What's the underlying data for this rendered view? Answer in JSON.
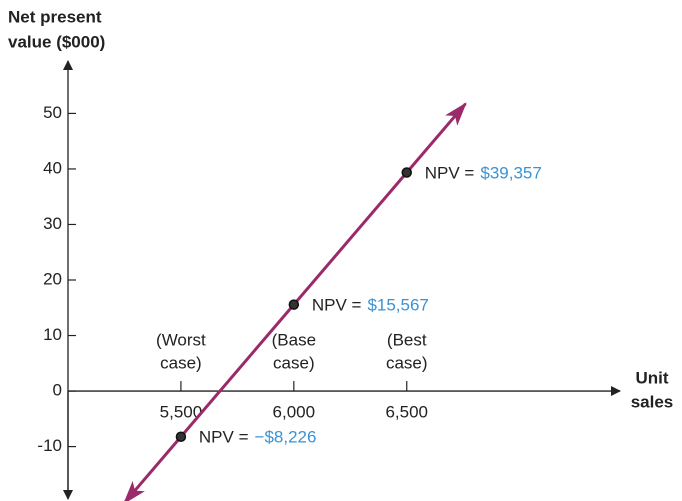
{
  "chart_data": {
    "type": "line",
    "ylabel": [
      "Net present",
      "value ($000)"
    ],
    "xlabel": [
      "Unit",
      "sales"
    ],
    "x": [
      5500,
      6000,
      6500
    ],
    "series": [
      {
        "color": "#9b2a6a",
        "values": [
          -8.226,
          15.567,
          39.357
        ],
        "value_labels": [
          "−$8,226",
          "$15,567",
          "$39,357"
        ]
      }
    ],
    "point_label_prefix": "NPV =",
    "value_label_color": "#3a93d3",
    "case_labels": [
      [
        "(Worst",
        "case)"
      ],
      [
        "(Base",
        "case)"
      ],
      [
        "(Best",
        "case)"
      ]
    ],
    "xlim": [
      5000,
      7400
    ],
    "ylim": [
      -18,
      58
    ],
    "xticks": [
      {
        "value": 5500,
        "label": "5,500"
      },
      {
        "value": 6000,
        "label": "6,000"
      },
      {
        "value": 6500,
        "label": "6,500"
      }
    ],
    "yticks": [
      -10,
      0,
      10,
      20,
      30,
      40,
      50
    ]
  }
}
